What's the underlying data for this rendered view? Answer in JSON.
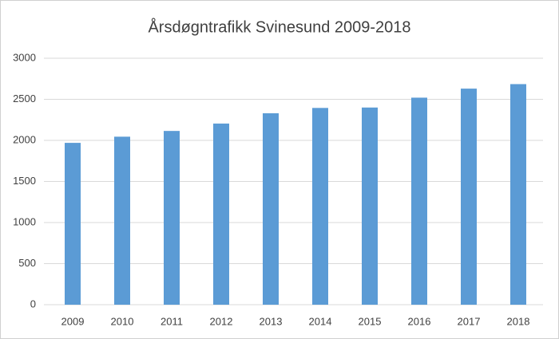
{
  "chart_data": {
    "type": "bar",
    "title": "Årsdøgntrafikk Svinesund 2009-2018",
    "categories": [
      "2009",
      "2010",
      "2011",
      "2012",
      "2013",
      "2014",
      "2015",
      "2016",
      "2017",
      "2018"
    ],
    "values": [
      1970,
      2045,
      2115,
      2205,
      2330,
      2395,
      2400,
      2520,
      2630,
      2685
    ],
    "color": "#5b9bd5",
    "ylim": [
      0,
      3000
    ],
    "yticks": [
      0,
      500,
      1000,
      1500,
      2000,
      2500,
      3000
    ],
    "grid": true
  }
}
